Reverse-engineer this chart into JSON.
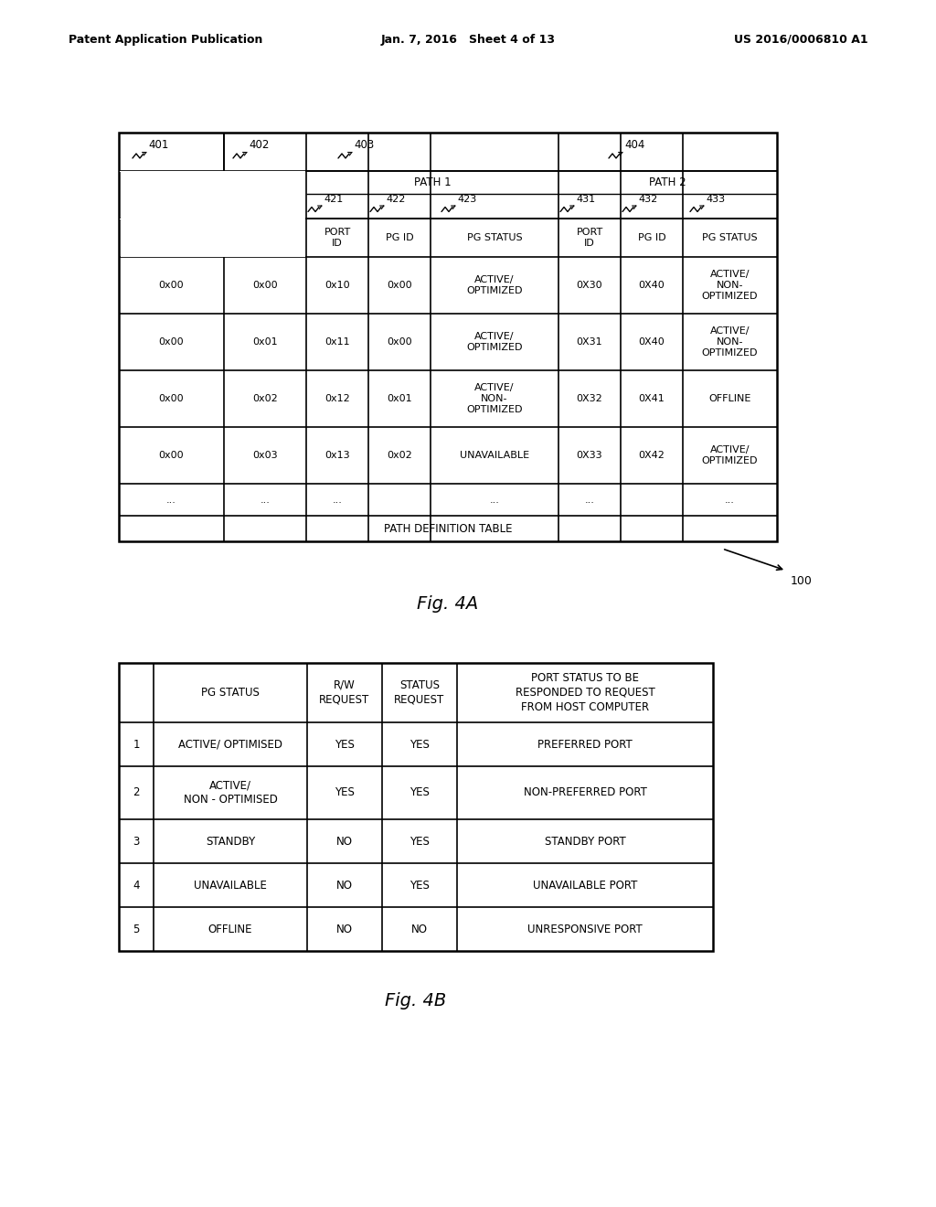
{
  "bg_color": "#ffffff",
  "header_left": "Patent Application Publication",
  "header_center": "Jan. 7, 2016   Sheet 4 of 13",
  "header_right": "US 2016/0006810 A1",
  "fig4a_title": "Fig. 4A",
  "fig4b_title": "Fig. 4B",
  "table_label": "100",
  "fig4a_footer": "PATH DEFINITION TABLE",
  "fig4a_rows": [
    [
      "0x00",
      "0x00",
      "0x10",
      "0x00",
      "ACTIVE/\nOPTIMIZED",
      "0X30",
      "0X40",
      "ACTIVE/\nNON-\nOPTIMIZED"
    ],
    [
      "0x00",
      "0x01",
      "0x11",
      "0x00",
      "ACTIVE/\nOPTIMIZED",
      "0X31",
      "0X40",
      "ACTIVE/\nNON-\nOPTIMIZED"
    ],
    [
      "0x00",
      "0x02",
      "0x12",
      "0x01",
      "ACTIVE/\nNON-\nOPTIMIZED",
      "0X32",
      "0X41",
      "OFFLINE"
    ],
    [
      "0x00",
      "0x03",
      "0x13",
      "0x02",
      "UNAVAILABLE",
      "0X33",
      "0X42",
      "ACTIVE/\nOPTIMIZED"
    ],
    [
      "...",
      "...",
      "...",
      "",
      "...",
      "...",
      "",
      "..."
    ]
  ],
  "fig4b_rows": [
    [
      "1",
      "ACTIVE/ OPTIMISED",
      "YES",
      "YES",
      "PREFERRED PORT"
    ],
    [
      "2",
      "ACTIVE/\nNON - OPTIMISED",
      "YES",
      "YES",
      "NON-PREFERRED PORT"
    ],
    [
      "3",
      "STANDBY",
      "NO",
      "YES",
      "STANDBY PORT"
    ],
    [
      "4",
      "UNAVAILABLE",
      "NO",
      "YES",
      "UNAVAILABLE PORT"
    ],
    [
      "5",
      "OFFLINE",
      "NO",
      "NO",
      "UNRESPONSIVE PORT"
    ]
  ],
  "fig4a_col_widths": [
    115,
    90,
    68,
    68,
    140,
    68,
    68,
    103
  ],
  "fig4b_col_widths": [
    38,
    168,
    82,
    82,
    280
  ]
}
